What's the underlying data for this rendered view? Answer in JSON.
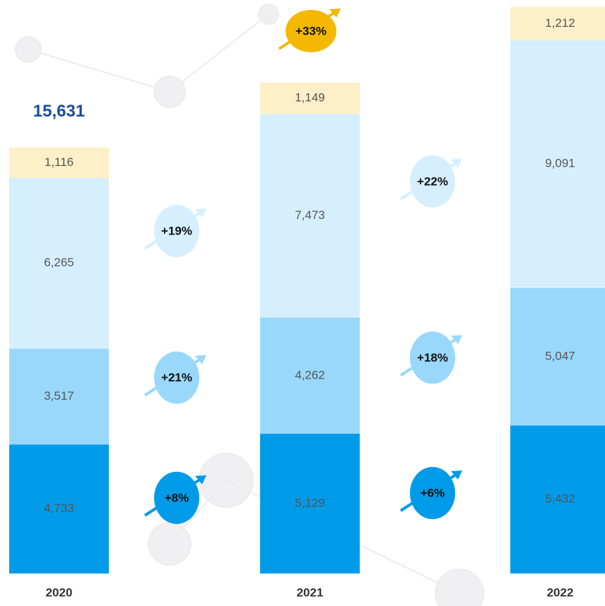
{
  "chart_data": {
    "type": "stacked_bar",
    "categories": [
      "2020",
      "2021",
      "2022"
    ],
    "series": [
      {
        "color": "#009be8",
        "values": [
          4733,
          5129,
          5432
        ],
        "value_labels": [
          "4,733",
          "5,129",
          "5,432"
        ]
      },
      {
        "color": "#99d8fb",
        "values": [
          3517,
          4262,
          5047
        ],
        "value_labels": [
          "3,517",
          "4,262",
          "5,047"
        ]
      },
      {
        "color": "#d6efff",
        "values": [
          6265,
          7473,
          9091
        ],
        "value_labels": [
          "6,265",
          "7,473",
          "9,091"
        ]
      },
      {
        "color": "#fdf0c8",
        "values": [
          1116,
          1149,
          1212
        ],
        "value_labels": [
          "1,116",
          "1,149",
          "1,212"
        ]
      }
    ],
    "totals": [
      15631,
      null,
      null
    ],
    "total_labels": [
      "15,631",
      null,
      null
    ],
    "growth_labels": [
      [
        "+8%",
        "+21%",
        "+19%"
      ],
      [
        "+6%",
        "+18%",
        "+22%"
      ]
    ],
    "total_growth_label": "+33%",
    "total_growth_color": "#f5b800"
  }
}
